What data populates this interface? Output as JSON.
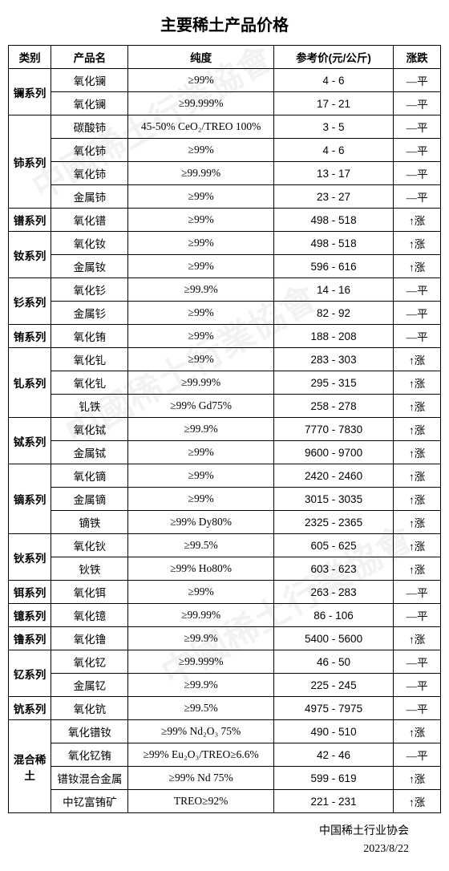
{
  "title": "主要稀土产品价格",
  "headers": {
    "category": "类别",
    "product": "产品名",
    "purity": "纯度",
    "price": "参考价(元/公斤)",
    "trend": "涨跌"
  },
  "trend_flat": "—平",
  "trend_up": "↑涨",
  "footer": {
    "org": "中国稀土行业协会",
    "date": "2023/8/22"
  },
  "groups": [
    {
      "cat": "镧系列",
      "rows": [
        {
          "p": "氧化镧",
          "pu": "≥99%",
          "lo": "4",
          "hi": "6",
          "t": "flat"
        },
        {
          "p": "氧化镧",
          "pu": "≥99.999%",
          "lo": "17",
          "hi": "21",
          "t": "flat"
        }
      ]
    },
    {
      "cat": "铈系列",
      "rows": [
        {
          "p": "碳酸铈",
          "pu": "45-50% CeO₂/TREO 100%",
          "lo": "3",
          "hi": "5",
          "t": "flat"
        },
        {
          "p": "氧化铈",
          "pu": "≥99%",
          "lo": "4",
          "hi": "6",
          "t": "flat"
        },
        {
          "p": "氧化铈",
          "pu": "≥99.99%",
          "lo": "13",
          "hi": "17",
          "t": "flat"
        },
        {
          "p": "金属铈",
          "pu": "≥99%",
          "lo": "23",
          "hi": "27",
          "t": "flat"
        }
      ]
    },
    {
      "cat": "镨系列",
      "rows": [
        {
          "p": "氧化镨",
          "pu": "≥99%",
          "lo": "498",
          "hi": "518",
          "t": "up"
        }
      ]
    },
    {
      "cat": "钕系列",
      "rows": [
        {
          "p": "氧化钕",
          "pu": "≥99%",
          "lo": "498",
          "hi": "518",
          "t": "up"
        },
        {
          "p": "金属钕",
          "pu": "≥99%",
          "lo": "596",
          "hi": "616",
          "t": "up"
        }
      ]
    },
    {
      "cat": "钐系列",
      "rows": [
        {
          "p": "氧化钐",
          "pu": "≥99.9%",
          "lo": "14",
          "hi": "16",
          "t": "flat"
        },
        {
          "p": "金属钐",
          "pu": "≥99%",
          "lo": "82",
          "hi": "92",
          "t": "flat"
        }
      ]
    },
    {
      "cat": "铕系列",
      "rows": [
        {
          "p": "氧化铕",
          "pu": "≥99%",
          "lo": "188",
          "hi": "208",
          "t": "flat"
        }
      ]
    },
    {
      "cat": "钆系列",
      "rows": [
        {
          "p": "氧化钆",
          "pu": "≥99%",
          "lo": "283",
          "hi": "303",
          "t": "up"
        },
        {
          "p": "氧化钆",
          "pu": "≥99.99%",
          "lo": "295",
          "hi": "315",
          "t": "up"
        },
        {
          "p": "钆铁",
          "pu": "≥99% Gd75%",
          "lo": "258",
          "hi": "278",
          "t": "up"
        }
      ]
    },
    {
      "cat": "铽系列",
      "rows": [
        {
          "p": "氧化铽",
          "pu": "≥99.9%",
          "lo": "7770",
          "hi": "7830",
          "t": "up"
        },
        {
          "p": "金属铽",
          "pu": "≥99%",
          "lo": "9600",
          "hi": "9700",
          "t": "up"
        }
      ]
    },
    {
      "cat": "镝系列",
      "rows": [
        {
          "p": "氧化镝",
          "pu": "≥99%",
          "lo": "2420",
          "hi": "2460",
          "t": "up"
        },
        {
          "p": "金属镝",
          "pu": "≥99%",
          "lo": "3015",
          "hi": "3035",
          "t": "up"
        },
        {
          "p": "镝铁",
          "pu": "≥99% Dy80%",
          "lo": "2325",
          "hi": "2365",
          "t": "up"
        }
      ]
    },
    {
      "cat": "钬系列",
      "rows": [
        {
          "p": "氧化钬",
          "pu": "≥99.5%",
          "lo": "605",
          "hi": "625",
          "t": "up"
        },
        {
          "p": "钬铁",
          "pu": "≥99% Ho80%",
          "lo": "603",
          "hi": "623",
          "t": "up"
        }
      ]
    },
    {
      "cat": "铒系列",
      "rows": [
        {
          "p": "氧化铒",
          "pu": "≥99%",
          "lo": "263",
          "hi": "283",
          "t": "flat"
        }
      ]
    },
    {
      "cat": "镱系列",
      "rows": [
        {
          "p": "氧化镱",
          "pu": "≥99.99%",
          "lo": "86",
          "hi": "106",
          "t": "flat"
        }
      ]
    },
    {
      "cat": "镥系列",
      "rows": [
        {
          "p": "氧化镥",
          "pu": "≥99.9%",
          "lo": "5400",
          "hi": "5600",
          "t": "up"
        }
      ]
    },
    {
      "cat": "钇系列",
      "rows": [
        {
          "p": "氧化钇",
          "pu": "≥99.999%",
          "lo": "46",
          "hi": "50",
          "t": "flat"
        },
        {
          "p": "金属钇",
          "pu": "≥99.9%",
          "lo": "225",
          "hi": "245",
          "t": "flat"
        }
      ]
    },
    {
      "cat": "钪系列",
      "rows": [
        {
          "p": "氧化钪",
          "pu": "≥99.5%",
          "lo": "4975",
          "hi": "7975",
          "t": "flat"
        }
      ]
    },
    {
      "cat": "混合稀土",
      "rows": [
        {
          "p": "氧化镨钕",
          "pu": "≥99%  Nd₂O₃  75%",
          "lo": "490",
          "hi": "510",
          "t": "up"
        },
        {
          "p": "氧化钇铕",
          "pu": "≥99% Eu₂O₃/TREO≥6.6%",
          "lo": "42",
          "hi": "46",
          "t": "flat"
        },
        {
          "p": "镨钕混合金属",
          "pu": "≥99% Nd 75%",
          "lo": "599",
          "hi": "619",
          "t": "up"
        },
        {
          "p": "中钇富铕矿",
          "pu": "TREO≥92%",
          "lo": "221",
          "hi": "231",
          "t": "up"
        }
      ]
    }
  ]
}
